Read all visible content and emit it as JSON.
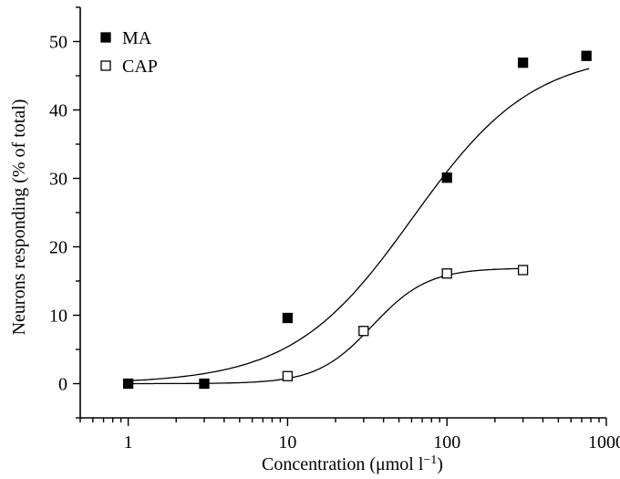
{
  "chart_data": {
    "type": "scatter",
    "xscale": "log",
    "xlim": [
      0.5,
      1000
    ],
    "ylim": [
      -5,
      55
    ],
    "x_ticks": [
      1,
      10,
      100,
      1000
    ],
    "x_tick_labels": [
      "1",
      "10",
      "100",
      "1000"
    ],
    "y_ticks": [
      0,
      10,
      20,
      30,
      40,
      50
    ],
    "y_tick_labels": [
      "0",
      "10",
      "20",
      "30",
      "40",
      "50"
    ],
    "xlabel": "Concentration (μmol l",
    "xlabel_sup": "−1",
    "xlabel_end": ")",
    "ylabel": "Neurons responding (% of total)",
    "legend_position": "top-left",
    "grid": false,
    "series": [
      {
        "name": "MA",
        "marker": "filled-square",
        "color": "#000000",
        "x": [
          1,
          3,
          10,
          100,
          300,
          750
        ],
        "y": [
          0,
          0,
          9.6,
          30.1,
          46.9,
          47.9
        ],
        "fit": "sigmoid"
      },
      {
        "name": "CAP",
        "marker": "open-square",
        "color": "#000000",
        "x": [
          10,
          30,
          100,
          300
        ],
        "y": [
          1.1,
          7.7,
          16.1,
          16.6
        ],
        "fit": "sigmoid"
      }
    ]
  }
}
